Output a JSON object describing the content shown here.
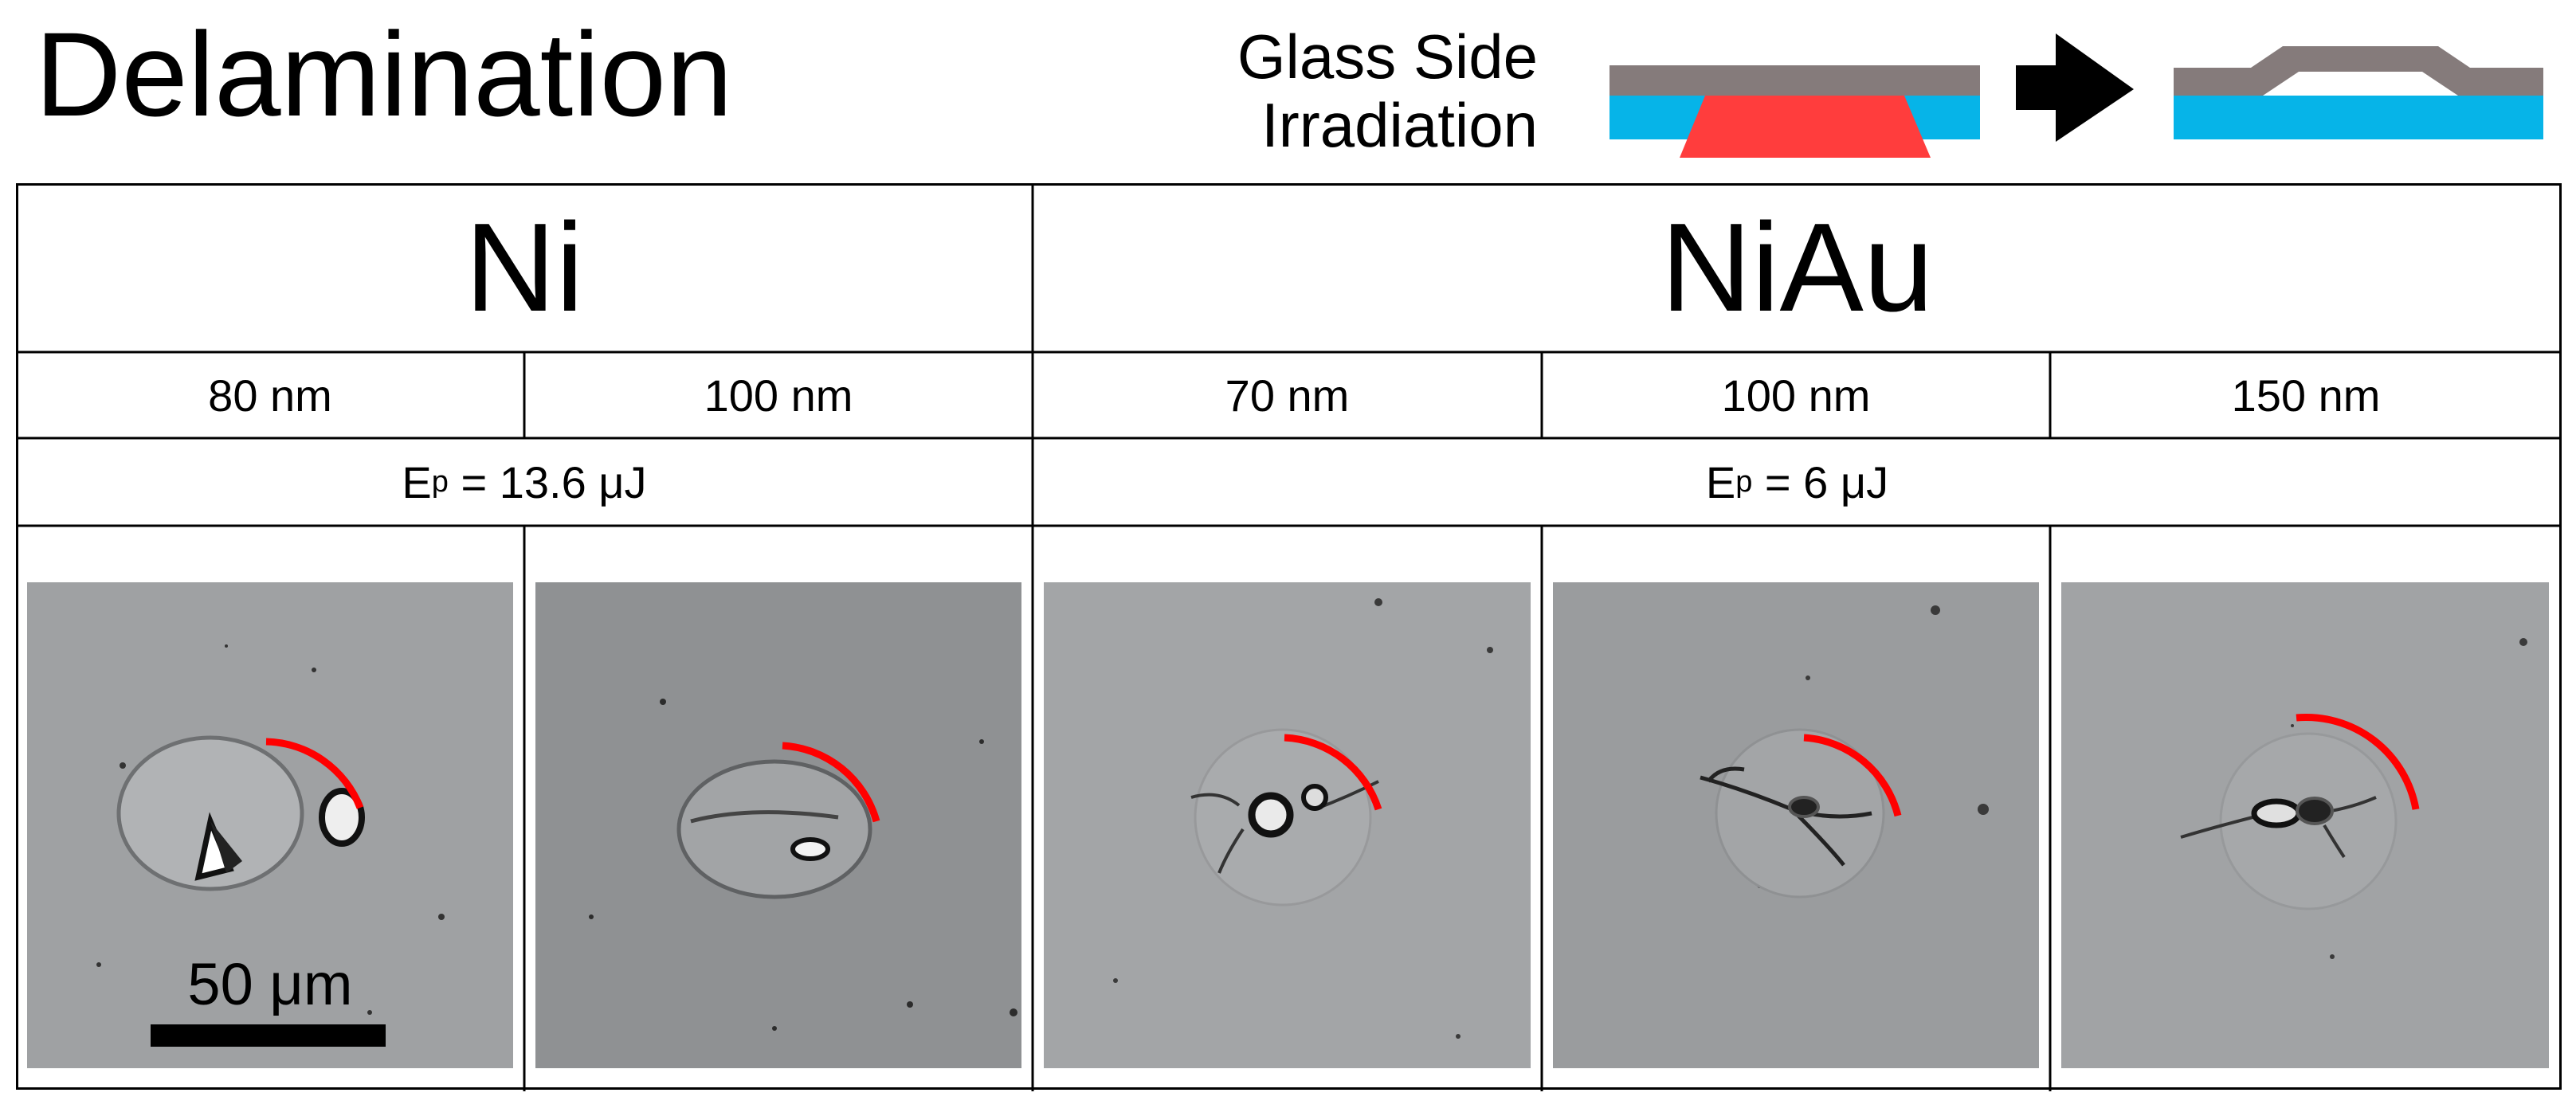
{
  "figure": {
    "title": "Delamination",
    "schematic_label_line1": "Glass Side",
    "schematic_label_line2": "Irradiation",
    "colors": {
      "metal_film": "#857b7b",
      "glass_layer": "#06b4e8",
      "laser_beam": "#ff3d3d",
      "arrow": "#000000",
      "crack_arc": "#ff0000",
      "micrograph_bg": "#9fa1a3"
    }
  },
  "table": {
    "groups": [
      {
        "label": "Ni",
        "energy_prefix": "E",
        "energy_sub": "p",
        "energy_value": " = 13.6 μJ"
      },
      {
        "label": "NiAu",
        "energy_prefix": "E",
        "energy_sub": "p",
        "energy_value": " = 6 μJ"
      }
    ],
    "thickness": [
      "80 nm",
      "100 nm",
      "70 nm",
      "100 nm",
      "150 nm"
    ],
    "scale_bar_label": "50 μm"
  }
}
